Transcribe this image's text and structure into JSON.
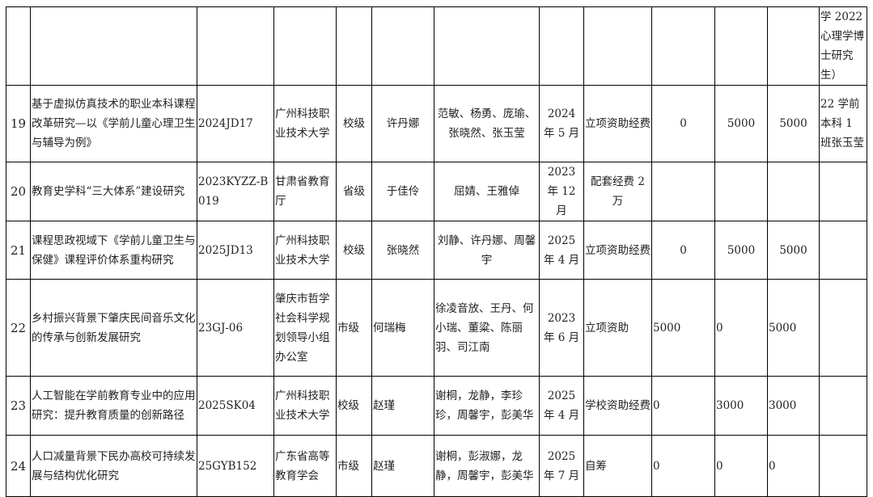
{
  "table": {
    "rows": [
      {
        "no": "",
        "title": "",
        "code": "",
        "org": "",
        "level": "",
        "leader": "",
        "members": "",
        "date": "",
        "funding_type": "",
        "amount_a": "",
        "amount_b": "",
        "amount_total": "",
        "note": "学 2022 心理学博士研究生）"
      },
      {
        "no": "19",
        "title": "基于虚拟仿真技术的职业本科课程改革研究—以《学前儿童心理卫生与辅导为例》",
        "code": "2024JD17",
        "org": "广州科技职业技术大学",
        "level": "校级",
        "leader": "许丹娜",
        "members": "范敏、杨勇、庞瑜、张晓然、张玉莹",
        "date": "2024 年 5 月",
        "funding_type": "立项资助经费",
        "amount_a": "0",
        "amount_b": "5000",
        "amount_total": "5000",
        "note": "22 学前本科 1 班张玉莹"
      },
      {
        "no": "20",
        "title": "教育史学科“三大体系”建设研究",
        "code": "2023KYZZ-B019",
        "org": "甘肃省教育厅",
        "level": "省级",
        "leader": "于佳伶",
        "members": "屈婧、王雅倬",
        "date": "2023 年 12 月",
        "funding_type": "配套经费 2 万",
        "amount_a": "",
        "amount_b": "",
        "amount_total": "",
        "note": ""
      },
      {
        "no": "21",
        "title": "课程思政视域下《学前儿童卫生与保健》课程评价体系重构研究",
        "code": "2025JD13",
        "org": "广州科技职业技术大学",
        "level": "校级",
        "leader": "张晓然",
        "members": "刘静、许丹娜、周馨宇",
        "date": "2025 年 4 月",
        "funding_type": "立项资助经费",
        "amount_a": "0",
        "amount_b": "5000",
        "amount_total": "5000",
        "note": ""
      },
      {
        "no": "22",
        "title": "乡村振兴背景下肇庆民间音乐文化的传承与创新发展研究",
        "code": "23GJ-06",
        "org": "肇庆市哲学社会科学规划领导小组办公室",
        "level": "市级",
        "leader": "何瑞梅",
        "members": "徐凌音放、王丹、何小瑞、董粱、陈丽羽、司江南",
        "date": "2023 年 6 月",
        "funding_type": "立项资助",
        "amount_a": "5000",
        "amount_b": "0",
        "amount_total": "5000",
        "note": ""
      },
      {
        "no": "23",
        "title": "人工智能在学前教育专业中的应用研究：提升教育质量的创新路径",
        "code": "2025SK04",
        "org": "广州科技职业技术大学",
        "level": "校级",
        "leader": "赵瑾",
        "members": "谢桐，龙静，李珍珍，周馨宇，彭美华",
        "date": "2025 年 4 月",
        "funding_type": "学校资助经费",
        "amount_a": "0",
        "amount_b": "3000",
        "amount_total": "3000",
        "note": ""
      },
      {
        "no": "24",
        "title": "人口减量背景下民办高校可持续发展与结构优化研究",
        "code": "25GYB152",
        "org": "广东省高等教育学会",
        "level": "市级",
        "leader": "赵瑾",
        "members": "谢桐，彭淑娜，龙静，周馨宇，彭美华",
        "date": "2025 年 7 月",
        "funding_type": "自筹",
        "amount_a": "0",
        "amount_b": "0",
        "amount_total": "0",
        "note": ""
      }
    ]
  }
}
